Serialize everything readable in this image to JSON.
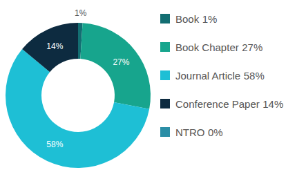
{
  "chart_data": {
    "type": "pie",
    "categories": [
      "Book",
      "Book Chapter",
      "Journal Article",
      "Conference Paper",
      "NTRO"
    ],
    "values": [
      1,
      27,
      58,
      14,
      0
    ],
    "value_labels": [
      "1%",
      "27%",
      "58%",
      "14%",
      "0%"
    ],
    "colors": [
      "#136e72",
      "#17a58d",
      "#1ebfd5",
      "#0d2b40",
      "#2b8ea6"
    ],
    "data_labels": true,
    "legend": "right"
  }
}
